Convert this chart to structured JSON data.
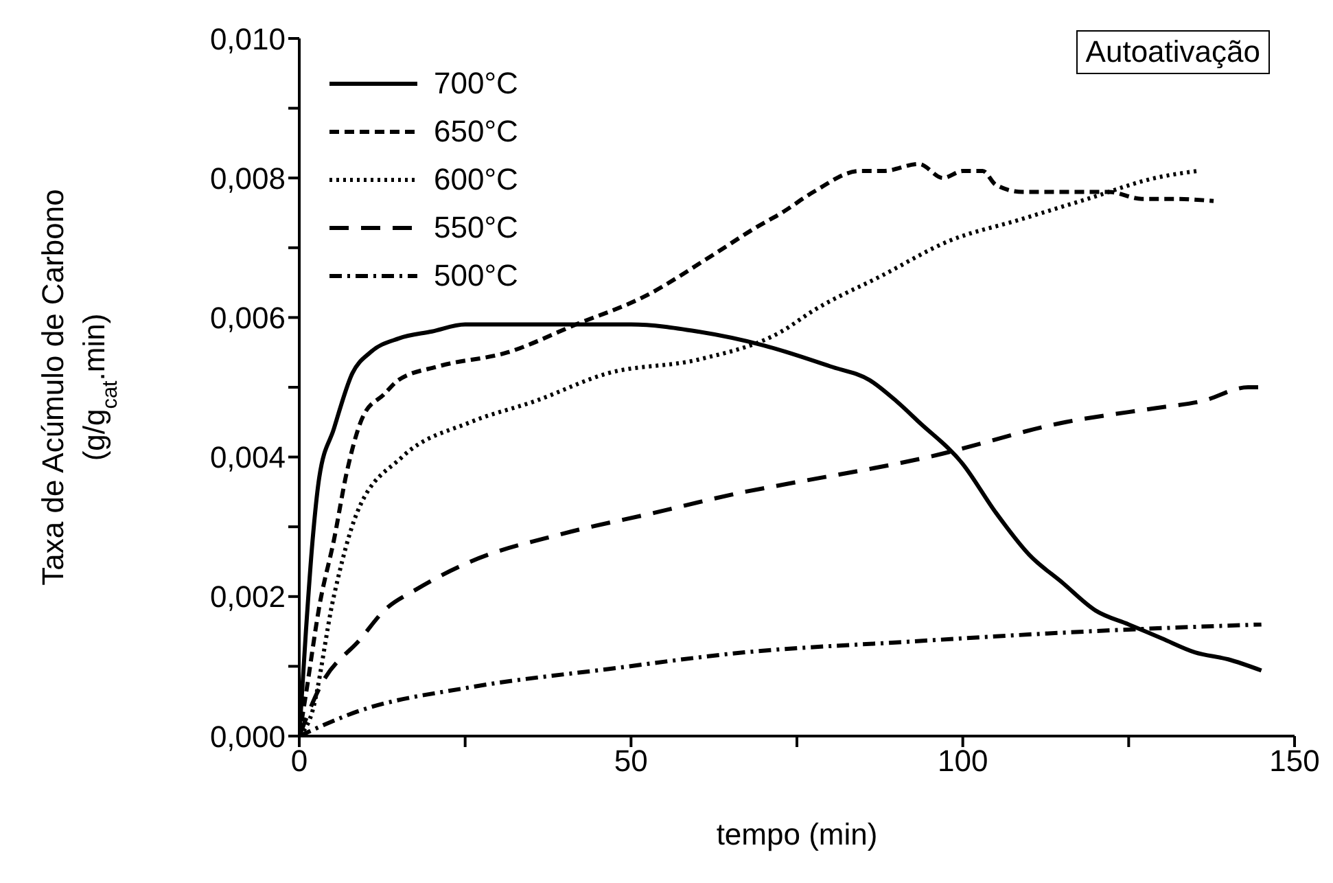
{
  "chart_data": {
    "type": "line",
    "xlabel": "tempo (min)",
    "ylabel": "Taxa de Acúmulo de Carbono\n(g/g$_{cat}$.min)",
    "annotations": [
      "Autoativação"
    ],
    "xlim": [
      0,
      150
    ],
    "xticks": [
      0,
      {
        "value": 25,
        "label": null
      },
      50,
      {
        "value": 75,
        "label": null
      },
      100,
      {
        "value": 125,
        "label": null
      },
      150
    ],
    "ylim": [
      0,
      0.01
    ],
    "yticks": [
      {
        "value": 0,
        "label": "0,000"
      },
      {
        "value": 0.001,
        "label": null
      },
      {
        "value": 0.002,
        "label": "0,002"
      },
      {
        "value": 0.003,
        "label": null
      },
      {
        "value": 0.004,
        "label": "0,004"
      },
      {
        "value": 0.005,
        "label": null
      },
      {
        "value": 0.006,
        "label": "0,006"
      },
      {
        "value": 0.007,
        "label": null
      },
      {
        "value": 0.008,
        "label": "0,008"
      },
      {
        "value": 0.009,
        "label": null
      },
      {
        "value": 0.01,
        "label": "0,010"
      }
    ],
    "grid": false,
    "legend": "top left",
    "marker": "none",
    "series": [
      {
        "name": "700°C",
        "color": "#000000",
        "line_style": "solid",
        "x": [
          0,
          1,
          2,
          3,
          5.2,
          8,
          10.7,
          15,
          20,
          25,
          30,
          40,
          50,
          60,
          70,
          80,
          86,
          90,
          93.4,
          100,
          105,
          110,
          115,
          120,
          125,
          130,
          135,
          140,
          145
        ],
        "values": [
          0,
          0.0015,
          0.0028,
          0.0037,
          0.0044,
          0.0052,
          0.0055,
          0.0057,
          0.0058,
          0.0059,
          0.0059,
          0.0059,
          0.0059,
          0.0058,
          0.0056,
          0.0053,
          0.0051,
          0.0048,
          0.0045,
          0.0039,
          0.0032,
          0.0026,
          0.0022,
          0.0018,
          0.0016,
          0.0014,
          0.0012,
          0.0011,
          0.00094
        ]
      },
      {
        "name": "650°C",
        "color": "#000000",
        "line_style": "dashed",
        "x": [
          0,
          1,
          3.1,
          5.2,
          7.2,
          9.7,
          12.8,
          14.9,
          21,
          31.4,
          41.7,
          52,
          62.4,
          69,
          72.7,
          77.5,
          84.5,
          88,
          93.4,
          97,
          100,
          103,
          105,
          109,
          115,
          122,
          127,
          132,
          137.8
        ],
        "values": [
          0,
          0.0006,
          0.0019,
          0.0028,
          0.0038,
          0.0046,
          0.0049,
          0.0051,
          0.0053,
          0.0055,
          0.0059,
          0.0063,
          0.0069,
          0.0073,
          0.0075,
          0.0078,
          0.0081,
          0.0081,
          0.0082,
          0.008,
          0.0081,
          0.0081,
          0.0079,
          0.0078,
          0.0078,
          0.0078,
          0.0077,
          0.0077,
          0.00767
        ]
      },
      {
        "name": "600°C",
        "color": "#000000",
        "line_style": "dotted",
        "x": [
          0,
          1.8,
          5.2,
          8.7,
          15.5,
          25.8,
          35.5,
          46.5,
          60.3,
          72.7,
          77.5,
          87.8,
          98,
          108.5,
          118.8,
          129,
          135.3
        ],
        "values": [
          0,
          0.0003,
          0.002,
          0.0032,
          0.004,
          0.0045,
          0.0048,
          0.0052,
          0.0054,
          0.0058,
          0.0061,
          0.0066,
          0.0071,
          0.0074,
          0.0077,
          0.008,
          0.0081
        ]
      },
      {
        "name": "550°C",
        "color": "#000000",
        "line_style": "longdash",
        "x": [
          0,
          3.1,
          9.3,
          12.8,
          17.6,
          25.8,
          39.7,
          53.5,
          67.1,
          72.7,
          94.8,
          115.5,
          129,
          136,
          143,
          145
        ],
        "values": [
          0,
          0.0007,
          0.0014,
          0.0018,
          0.0021,
          0.0025,
          0.0029,
          0.0032,
          0.0035,
          0.0036,
          0.004,
          0.0045,
          0.0047,
          0.0048,
          0.005,
          0.005
        ]
      },
      {
        "name": "500°C",
        "color": "#000000",
        "line_style": "dashdot",
        "x": [
          0,
          8.7,
          25.8,
          46.5,
          67.1,
          91.3,
          118.8,
          145
        ],
        "values": [
          0,
          0.00035,
          0.0007,
          0.00096,
          0.0012,
          0.00135,
          0.0015,
          0.0016
        ]
      }
    ]
  }
}
